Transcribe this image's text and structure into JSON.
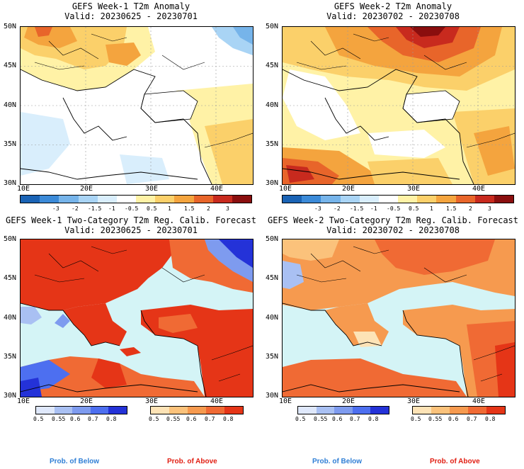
{
  "panels": [
    {
      "title": "GEFS Week-1 T2m Anomaly",
      "valid": "Valid: 20230625 - 20230701"
    },
    {
      "title": "GEFS Week-2 T2m Anomaly",
      "valid": "Valid: 20230702 - 20230708"
    },
    {
      "title": "GEFS Week-1 Two-Category T2m Reg. Calib. Forecast",
      "valid": "Valid: 20230625 - 20230701"
    },
    {
      "title": "GEFS Week-2 Two-Category T2m Reg. Calib. Forecast",
      "valid": "Valid: 20230702 - 20230708"
    }
  ],
  "lat_labels": [
    "50N",
    "45N",
    "40N",
    "35N",
    "30N"
  ],
  "lon_labels": [
    "10E",
    "20E",
    "30E",
    "40E"
  ],
  "anomaly_scale": {
    "labels": [
      "-3",
      "-2",
      "-1.5",
      "-1",
      "-0.5",
      "0.5",
      "1",
      "1.5",
      "2",
      "3"
    ],
    "colors": [
      "#1a63b5",
      "#3b8ad8",
      "#76b4ea",
      "#a9d4f5",
      "#d9eefc",
      "#ffffff",
      "#fff2a6",
      "#fbd06a",
      "#f4a43e",
      "#e8652a",
      "#c82a1e",
      "#8a0e0e"
    ]
  },
  "below_scale": {
    "labels": [
      "0.5",
      "0.55",
      "0.6",
      "0.7",
      "0.8"
    ],
    "colors": [
      "#dfe8fb",
      "#a9c0f3",
      "#7e9bef",
      "#4d6ff0",
      "#2432d8"
    ]
  },
  "above_scale": {
    "labels": [
      "0.5",
      "0.55",
      "0.6",
      "0.7",
      "0.8"
    ],
    "colors": [
      "#fde3b6",
      "#fbc27b",
      "#f69a4f",
      "#f06a34",
      "#e53517"
    ]
  },
  "prob_below": "Prob. of Below",
  "prob_above": "Prob. of Above",
  "colors": {
    "below_text": "#2f7fd6",
    "above_text": "#e11e12",
    "sea": "#d4f4f6"
  }
}
